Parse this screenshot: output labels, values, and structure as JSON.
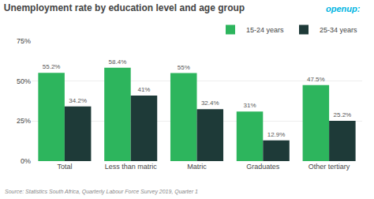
{
  "chart_data": {
    "type": "bar",
    "title": "Unemployment rate by education level and age group",
    "categories": [
      "Total",
      "Less than matric",
      "Matric",
      "Graduates",
      "Other tertiary"
    ],
    "series": [
      {
        "name": "15-24 years",
        "color": "#2db55d",
        "values": [
          55.2,
          58.4,
          55.0,
          31.0,
          47.5
        ],
        "value_labels": [
          "55.2%",
          "58.4%",
          "55%",
          "31%",
          "47.5%"
        ]
      },
      {
        "name": "25-34 years",
        "color": "#1e3a38",
        "values": [
          34.2,
          41.0,
          32.4,
          12.9,
          25.2
        ],
        "value_labels": [
          "34.2%",
          "41%",
          "32.4%",
          "12.9%",
          "25.2%"
        ]
      }
    ],
    "ylim": [
      0,
      75
    ],
    "yticks": [
      {
        "value": 0,
        "label": "0%"
      },
      {
        "value": 25,
        "label": "25%"
      },
      {
        "value": 50,
        "label": "50%"
      },
      {
        "value": 75,
        "label": "75%"
      }
    ],
    "grid": true,
    "legend": "upper right",
    "data_labels": true,
    "annotations": [
      "openup:",
      "Source: Statistics South Africa, Quarterly Labour Force Survey 2019, Quarter 1"
    ]
  }
}
